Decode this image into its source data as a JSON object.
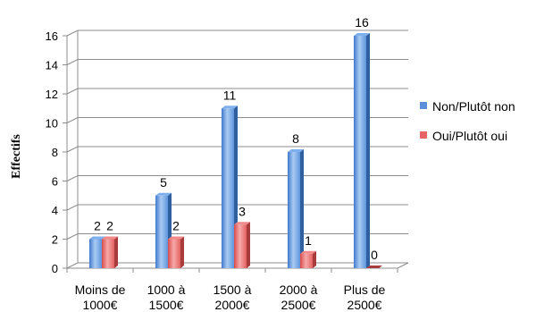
{
  "chart_data": {
    "type": "bar",
    "ylabel": "Effectifs",
    "xlabel": "",
    "ylim": [
      0,
      16
    ],
    "yticks": [
      0,
      2,
      4,
      6,
      8,
      10,
      12,
      14,
      16
    ],
    "grid": true,
    "legend_position": "right",
    "categories": [
      [
        "Moins de",
        "1000€"
      ],
      [
        "1000 à",
        "1500€"
      ],
      [
        "1500 à",
        "2000€"
      ],
      [
        "2000 à",
        "2500€"
      ],
      [
        "Plus de",
        "2500€"
      ]
    ],
    "series": [
      {
        "name": "Non/Plutôt non",
        "color": "#5b8fd9",
        "values": [
          2,
          5,
          11,
          8,
          16
        ]
      },
      {
        "name": "Oui/Plutôt oui",
        "color": "#e86464",
        "values": [
          2,
          2,
          3,
          1,
          0
        ]
      }
    ]
  }
}
